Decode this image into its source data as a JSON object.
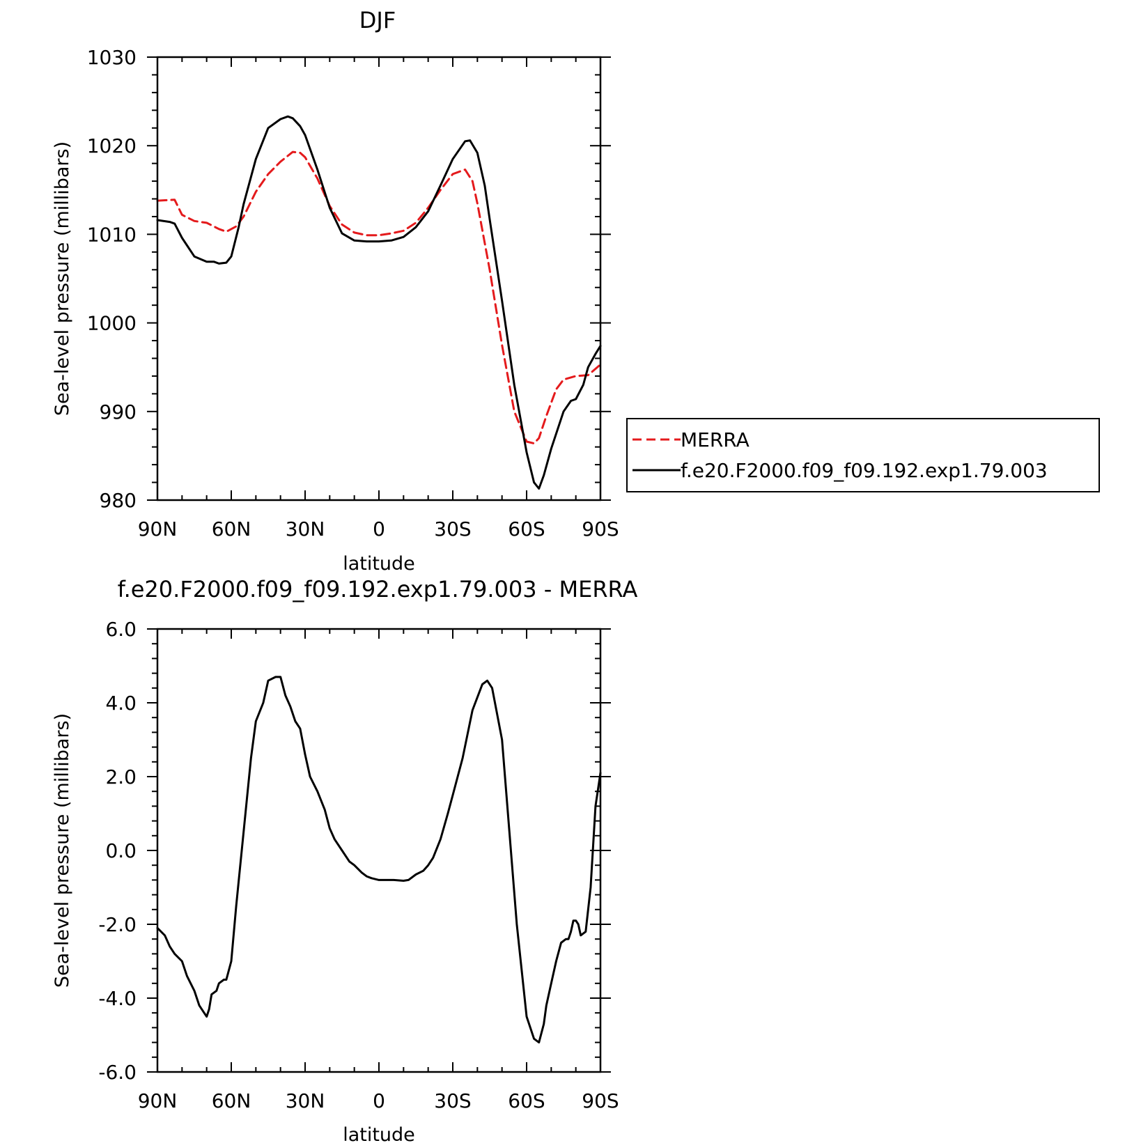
{
  "chart_data": [
    {
      "type": "line",
      "title": "DJF",
      "xlabel": "latitude",
      "ylabel": "Sea-level pressure (millibars)",
      "xlim": [
        90,
        -90
      ],
      "ylim": [
        980,
        1030
      ],
      "x_ticks": [
        90,
        60,
        30,
        0,
        -30,
        -60,
        -90
      ],
      "x_tick_labels": [
        "90N",
        "60N",
        "30N",
        "0",
        "30S",
        "60S",
        "90S"
      ],
      "y_ticks": [
        980,
        990,
        1000,
        1010,
        1020,
        1030
      ],
      "y_tick_labels": [
        "980",
        "990",
        "1000",
        "1010",
        "1020",
        "1030"
      ],
      "legend_position": "right",
      "series": [
        {
          "name": "MERRA",
          "color": "#e41a1c",
          "dash": "dashed",
          "x": [
            90,
            83,
            80,
            75,
            70,
            65,
            62,
            58,
            55,
            50,
            45,
            40,
            35,
            32,
            30,
            25,
            20,
            15,
            10,
            5,
            0,
            -5,
            -10,
            -15,
            -20,
            -25,
            -30,
            -35,
            -38,
            -40,
            -45,
            -50,
            -55,
            -60,
            -63,
            -65,
            -68,
            -72,
            -75,
            -80,
            -85,
            -90
          ],
          "y": [
            1013.8,
            1013.9,
            1012.2,
            1011.5,
            1011.3,
            1010.6,
            1010.3,
            1010.9,
            1012.0,
            1014.8,
            1016.8,
            1018.2,
            1019.3,
            1019.2,
            1018.7,
            1016.3,
            1013.2,
            1011.1,
            1010.2,
            1009.9,
            1009.9,
            1010.1,
            1010.4,
            1011.3,
            1013.0,
            1015.0,
            1016.8,
            1017.3,
            1016.0,
            1013.5,
            1006.0,
            997.5,
            990.0,
            986.6,
            986.4,
            987.0,
            989.5,
            992.5,
            993.6,
            994.0,
            994.1,
            995.3
          ]
        },
        {
          "name": "f.e20.F2000.f09_f09.192.exp1.79.003",
          "color": "#000000",
          "dash": "solid",
          "x": [
            90,
            85,
            83,
            80,
            75,
            70,
            67,
            65,
            62,
            60,
            57,
            55,
            50,
            45,
            40,
            37,
            35,
            32,
            30,
            25,
            20,
            15,
            10,
            5,
            0,
            -5,
            -10,
            -15,
            -20,
            -25,
            -30,
            -35,
            -37,
            -40,
            -43,
            -45,
            -50,
            -55,
            -60,
            -63,
            -65,
            -67,
            -70,
            -75,
            -78,
            -80,
            -83,
            -85,
            -88,
            -90
          ],
          "y": [
            1011.6,
            1011.4,
            1011.2,
            1009.6,
            1007.5,
            1006.9,
            1006.9,
            1006.7,
            1006.8,
            1007.5,
            1010.8,
            1013.4,
            1018.5,
            1022.0,
            1023.0,
            1023.3,
            1023.1,
            1022.2,
            1021.2,
            1017.3,
            1013.0,
            1010.1,
            1009.3,
            1009.2,
            1009.2,
            1009.3,
            1009.7,
            1010.8,
            1012.6,
            1015.5,
            1018.5,
            1020.5,
            1020.6,
            1019.2,
            1015.5,
            1011.7,
            1002.5,
            993.0,
            985.4,
            982.0,
            981.3,
            982.8,
            985.8,
            990.0,
            991.2,
            991.4,
            993.0,
            995.0,
            996.5,
            997.4
          ]
        }
      ]
    },
    {
      "type": "line",
      "title": "f.e20.F2000.f09_f09.192.exp1.79.003 - MERRA",
      "xlabel": "latitude",
      "ylabel": "Sea-level pressure (millibars)",
      "xlim": [
        90,
        -90
      ],
      "ylim": [
        -6,
        6
      ],
      "x_ticks": [
        90,
        60,
        30,
        0,
        -30,
        -60,
        -90
      ],
      "x_tick_labels": [
        "90N",
        "60N",
        "30N",
        "0",
        "30S",
        "60S",
        "90S"
      ],
      "y_ticks": [
        -6,
        -4,
        -2,
        0,
        2,
        4,
        6
      ],
      "y_tick_labels": [
        "-6.0",
        "-4.0",
        "-2.0",
        "0.0",
        "2.0",
        "4.0",
        "6.0"
      ],
      "series": [
        {
          "color": "#000000",
          "dash": "solid",
          "x": [
            90,
            87,
            85,
            83,
            80,
            78,
            75,
            73,
            71,
            70,
            69,
            68,
            66,
            65,
            63,
            62,
            60,
            58,
            55,
            52,
            50,
            47,
            45,
            42,
            40,
            38,
            36,
            34,
            32,
            30,
            28,
            25,
            22,
            20,
            18,
            15,
            12,
            10,
            7,
            5,
            3,
            0,
            -3,
            -6,
            -10,
            -12,
            -15,
            -18,
            -20,
            -22,
            -25,
            -28,
            -30,
            -34,
            -38,
            -42,
            -44,
            -46,
            -50,
            -53,
            -56,
            -60,
            -63,
            -65,
            -67,
            -68,
            -70,
            -72,
            -74,
            -76,
            -77,
            -78,
            -79,
            -80,
            -81,
            -82,
            -84,
            -86,
            -88,
            -90
          ],
          "y": [
            -2.1,
            -2.3,
            -2.6,
            -2.8,
            -3.0,
            -3.4,
            -3.8,
            -4.2,
            -4.4,
            -4.5,
            -4.3,
            -3.9,
            -3.8,
            -3.6,
            -3.5,
            -3.5,
            -3.0,
            -1.5,
            0.5,
            2.5,
            3.5,
            4.0,
            4.6,
            4.7,
            4.7,
            4.2,
            3.9,
            3.5,
            3.3,
            2.6,
            2.0,
            1.6,
            1.1,
            0.6,
            0.3,
            0.0,
            -0.3,
            -0.4,
            -0.6,
            -0.7,
            -0.75,
            -0.8,
            -0.8,
            -0.8,
            -0.82,
            -0.8,
            -0.65,
            -0.55,
            -0.4,
            -0.2,
            0.3,
            1.0,
            1.5,
            2.5,
            3.8,
            4.5,
            4.6,
            4.4,
            3.0,
            0.5,
            -2.0,
            -4.5,
            -5.1,
            -5.2,
            -4.7,
            -4.2,
            -3.6,
            -3.0,
            -2.5,
            -2.4,
            -2.4,
            -2.2,
            -1.9,
            -1.9,
            -2.0,
            -2.3,
            -2.2,
            -1.0,
            1.2,
            2.1
          ]
        }
      ]
    }
  ]
}
